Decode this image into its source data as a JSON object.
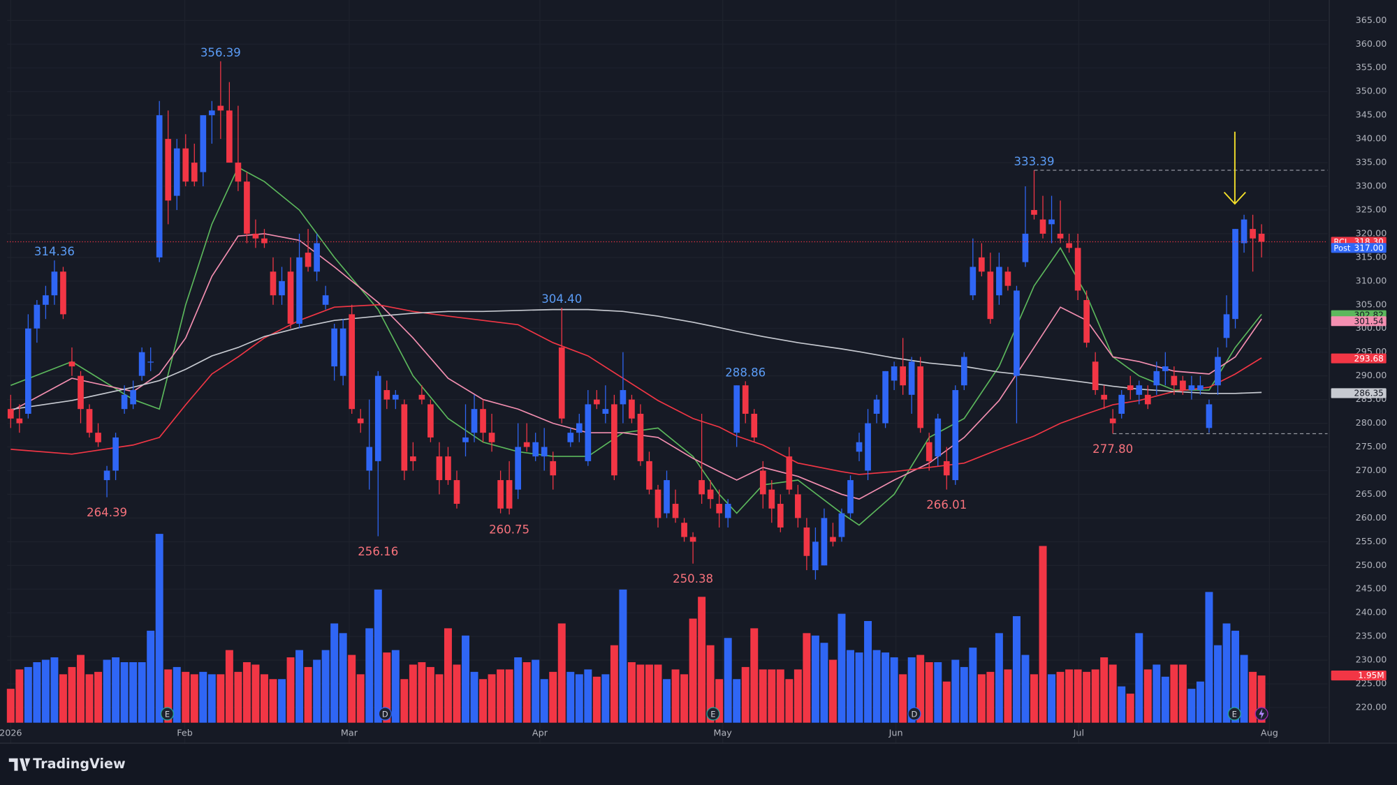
{
  "chart_data": {
    "type": "candlestick",
    "ylim": [
      220,
      365
    ],
    "yticks": [
      {
        "value": 220,
        "label": "220.00"
      },
      {
        "value": 225,
        "label": "225.00"
      },
      {
        "value": 230,
        "label": "230.00"
      },
      {
        "value": 235,
        "label": "235.00"
      },
      {
        "value": 240,
        "label": "240.00"
      },
      {
        "value": 245,
        "label": "245.00"
      },
      {
        "value": 250,
        "label": "250.00"
      },
      {
        "value": 255,
        "label": "255.00"
      },
      {
        "value": 260,
        "label": "260.00"
      },
      {
        "value": 265,
        "label": "265.00"
      },
      {
        "value": 270,
        "label": "270.00"
      },
      {
        "value": 275,
        "label": "275.00"
      },
      {
        "value": 280,
        "label": "280.00"
      },
      {
        "value": 285,
        "label": "285.00"
      },
      {
        "value": 290,
        "label": "290.00"
      },
      {
        "value": 295,
        "label": "295.00"
      },
      {
        "value": 300,
        "label": "300.00"
      },
      {
        "value": 305,
        "label": "305.00"
      },
      {
        "value": 310,
        "label": "310.00"
      },
      {
        "value": 315,
        "label": "315.00"
      },
      {
        "value": 320,
        "label": "320.00"
      },
      {
        "value": 325,
        "label": "325.00"
      },
      {
        "value": 330,
        "label": "330.00"
      },
      {
        "value": 335,
        "label": "335.00"
      },
      {
        "value": 340,
        "label": "340.00"
      },
      {
        "value": 345,
        "label": "345.00"
      },
      {
        "value": 350,
        "label": "350.00"
      },
      {
        "value": 355,
        "label": "355.00"
      },
      {
        "value": 360,
        "label": "360.00"
      },
      {
        "value": 365,
        "label": "365.00"
      }
    ],
    "xticks": [
      {
        "value": 0,
        "label": "2026"
      },
      {
        "value": 19.9,
        "label": "Feb"
      },
      {
        "value": 38.7,
        "label": "Mar"
      },
      {
        "value": 60.5,
        "label": "Apr"
      },
      {
        "value": 81.4,
        "label": "May"
      },
      {
        "value": 101.2,
        "label": "Jun"
      },
      {
        "value": 122.1,
        "label": "Jul"
      },
      {
        "value": 143.9,
        "label": "Aug"
      }
    ],
    "colors": {
      "up": "#2f66f5",
      "down": "#f23645"
    },
    "candles": {
      "open": [
        283,
        281,
        282,
        300,
        305,
        307,
        312,
        293,
        290,
        283,
        278,
        268,
        270,
        283,
        284,
        290,
        293,
        315,
        340,
        328,
        338,
        335,
        333,
        345,
        347,
        346,
        335,
        331,
        320,
        319,
        312,
        307,
        312,
        301,
        316,
        312,
        305,
        292,
        290,
        303,
        281,
        270,
        272,
        287,
        285,
        284,
        273,
        286,
        284,
        273,
        273,
        268,
        276,
        278,
        283,
        278,
        268,
        268,
        266,
        276,
        273,
        273,
        272,
        296,
        276,
        278,
        272,
        285,
        282,
        284,
        284,
        285,
        282,
        272,
        266,
        261,
        263,
        259,
        256,
        268,
        266,
        263,
        260,
        278,
        288,
        282,
        270,
        266,
        263,
        273,
        265,
        258,
        249,
        250,
        256,
        256,
        261,
        274,
        270,
        282,
        280,
        289,
        292,
        286,
        292,
        276,
        273,
        272,
        268,
        288,
        307,
        315,
        312,
        307,
        312,
        290,
        314,
        325,
        323,
        322,
        320,
        318,
        317,
        306,
        293,
        286,
        281,
        282,
        288,
        286,
        286,
        288,
        291,
        290,
        289,
        287,
        287,
        279,
        288,
        298,
        302,
        318,
        321,
        320
      ],
      "high": [
        286,
        284,
        303,
        306,
        309,
        314.36,
        313,
        296,
        291,
        284,
        280,
        271,
        278,
        288,
        289,
        296,
        296,
        348,
        346,
        340,
        341,
        339,
        345,
        348,
        356.39,
        352,
        347,
        333,
        323,
        321,
        315,
        313,
        315,
        320,
        321,
        320,
        309,
        301,
        302,
        305,
        283,
        285,
        291,
        289,
        287,
        285,
        276,
        288,
        285,
        276,
        275,
        270,
        284,
        286,
        285,
        282,
        270,
        272,
        280,
        280,
        278,
        279,
        274,
        304.4,
        279,
        282,
        287,
        287,
        288,
        286,
        295,
        286,
        284,
        274,
        267,
        270,
        266,
        260,
        257,
        282,
        268,
        266,
        264,
        288,
        288.86,
        283,
        272,
        268,
        265,
        275,
        267,
        260,
        258,
        262,
        259,
        262,
        269,
        278,
        283,
        286,
        291,
        293,
        298,
        294,
        294,
        278,
        282,
        275,
        288,
        295,
        319,
        318,
        316,
        316,
        313,
        309,
        330,
        333.39,
        328,
        328,
        327,
        320,
        320,
        308,
        295,
        288,
        283,
        287,
        290,
        289,
        288,
        293,
        295,
        292,
        290,
        290,
        290,
        285,
        296,
        307,
        321,
        324,
        324,
        322
      ],
      "low": [
        279,
        278,
        281,
        297,
        302,
        305,
        302,
        290,
        280,
        277,
        275,
        264.39,
        268,
        282,
        283,
        289,
        291,
        314,
        322,
        325,
        330,
        330,
        330,
        339,
        340,
        335,
        329,
        318,
        317,
        317,
        305,
        305,
        300,
        300,
        312,
        310,
        304,
        289,
        288,
        282,
        278,
        266,
        256.16,
        283,
        283,
        268,
        270,
        284,
        276,
        265,
        267,
        262,
        273,
        276,
        276,
        274,
        261,
        260.75,
        264,
        274,
        272,
        270,
        266,
        280,
        275,
        276,
        271,
        283,
        280,
        268,
        280,
        280,
        271,
        265,
        258,
        260,
        259,
        255,
        250.38,
        263,
        262,
        258,
        258,
        275,
        280,
        276,
        262,
        259,
        257,
        265,
        258,
        249,
        247,
        250,
        254,
        255,
        260,
        272,
        268,
        280,
        279,
        287,
        286,
        282,
        278,
        270,
        271,
        266.01,
        267,
        287,
        306,
        311,
        301,
        305,
        308,
        280,
        313,
        323,
        319,
        318,
        318,
        316,
        306,
        296,
        286,
        283,
        277.8,
        281,
        285,
        284,
        283,
        286,
        288,
        286,
        286,
        285,
        286,
        278,
        286,
        296,
        300,
        316,
        312,
        315
      ],
      "close": [
        281,
        280,
        300,
        305,
        307,
        312,
        303,
        292,
        283,
        278,
        276,
        270,
        277,
        286,
        287,
        295,
        293,
        345,
        327,
        338,
        331,
        331,
        345,
        346,
        346,
        335,
        331,
        320,
        319,
        318,
        307,
        310,
        301,
        315,
        313,
        318,
        307,
        300,
        300,
        283,
        280,
        275,
        290,
        285,
        286,
        270,
        272,
        285,
        277,
        268,
        268,
        263,
        277,
        283,
        278,
        276,
        262,
        262,
        275,
        275,
        276,
        275,
        269,
        281,
        278,
        280,
        284,
        284,
        283,
        269,
        287,
        281,
        272,
        266,
        260,
        268,
        260,
        256,
        255,
        265,
        264,
        261,
        263,
        288,
        282,
        277,
        265,
        262,
        258,
        266,
        260,
        252,
        255,
        260,
        255,
        261,
        268,
        276,
        280,
        285,
        291,
        292,
        288,
        293,
        279,
        272,
        281,
        269,
        287,
        294,
        313,
        312,
        302,
        313,
        309,
        308,
        320,
        324,
        320,
        323,
        319,
        317,
        308,
        297,
        287,
        285,
        280,
        286,
        287,
        288,
        284,
        291,
        292,
        288,
        287,
        288,
        288,
        284,
        294,
        303,
        321,
        323,
        319,
        318.3
      ]
    },
    "volume": [
      1.4,
      2.2,
      2.3,
      2.5,
      2.6,
      2.7,
      2.0,
      2.3,
      2.8,
      2.0,
      2.1,
      2.6,
      2.7,
      2.5,
      2.5,
      2.5,
      3.8,
      7.8,
      2.2,
      2.3,
      2.1,
      2.0,
      2.1,
      2.0,
      2.0,
      3.0,
      2.1,
      2.5,
      2.4,
      2.0,
      1.8,
      1.8,
      2.7,
      3.0,
      2.3,
      2.6,
      3.0,
      4.1,
      3.7,
      2.8,
      2.0,
      3.9,
      5.5,
      2.9,
      3.0,
      1.8,
      2.4,
      2.5,
      2.3,
      2.0,
      3.9,
      2.4,
      3.6,
      2.1,
      1.8,
      2.0,
      2.2,
      2.2,
      2.7,
      2.5,
      2.6,
      1.8,
      2.1,
      4.1,
      2.1,
      2.0,
      2.2,
      1.9,
      2.0,
      3.2,
      5.5,
      2.5,
      2.4,
      2.4,
      2.4,
      1.8,
      2.2,
      2.0,
      4.3,
      5.2,
      3.2,
      1.8,
      3.5,
      1.8,
      2.3,
      3.9,
      2.2,
      2.2,
      2.2,
      1.8,
      2.2,
      3.7,
      3.6,
      3.3,
      2.6,
      4.5,
      3.0,
      2.9,
      4.2,
      3.0,
      2.9,
      2.7,
      2.0,
      2.7,
      2.8,
      2.5,
      2.5,
      1.7,
      2.6,
      2.3,
      3.1,
      2.0,
      2.1,
      3.7,
      2.2,
      4.4,
      2.8,
      2.0,
      7.3,
      2.0,
      2.1,
      2.2,
      2.2,
      2.1,
      2.2,
      2.7,
      2.4,
      1.5,
      1.2,
      3.7,
      2.2,
      2.4,
      1.9,
      2.4,
      2.4,
      1.4,
      1.7,
      5.4,
      3.2,
      4.1,
      3.8,
      2.8,
      2.1,
      1.95
    ],
    "volume_badge": {
      "value": 1.95,
      "label": "1.95M"
    },
    "moving_averages": {
      "x": [
        0,
        7,
        14,
        17,
        20,
        23,
        26,
        29,
        33,
        37,
        42,
        46,
        50,
        54,
        58,
        62,
        66,
        70,
        74,
        78,
        81,
        83,
        86,
        90,
        95,
        97,
        101,
        105,
        109,
        113,
        117,
        120,
        123,
        126,
        129,
        133,
        137,
        140,
        143
      ],
      "series": [
        {
          "color": "#5cb85c",
          "values": [
            288,
            293,
            285,
            283,
            305,
            322,
            334,
            331,
            325,
            315,
            304,
            290,
            281,
            276,
            274,
            273,
            273,
            278,
            279,
            273,
            265,
            261,
            267,
            268,
            261,
            258.5,
            265,
            277,
            281,
            292,
            309,
            317,
            307,
            294,
            290,
            287,
            287,
            296,
            303
          ]
        },
        {
          "color": "#f48fb1",
          "values": [
            282.5,
            289.5,
            286.7,
            290.4,
            298,
            311,
            319.5,
            320,
            318.6,
            313,
            305.5,
            298,
            289.5,
            285,
            283,
            280,
            278,
            278,
            277,
            272.6,
            269.8,
            268,
            270.7,
            268.8,
            265,
            264,
            268,
            271.6,
            277,
            284.8,
            296,
            304.5,
            301.7,
            294,
            293,
            291,
            290.4,
            294,
            302
          ]
        },
        {
          "color": "#f23645",
          "values": [
            274.5,
            273.5,
            275.4,
            277,
            283.9,
            290.4,
            294,
            298,
            301.7,
            304.5,
            305,
            303.6,
            302.6,
            301.7,
            300.8,
            297,
            294.2,
            289.5,
            284.8,
            281,
            279.2,
            277.3,
            275.4,
            271.6,
            269.8,
            269.2,
            269.8,
            270.7,
            271.6,
            274.5,
            277.3,
            280,
            282,
            283.9,
            284.8,
            286.7,
            287.6,
            290.4,
            293.8
          ]
        },
        {
          "color": "#c7cad1",
          "values": [
            282.9,
            284.8,
            287.6,
            289,
            291.4,
            294.2,
            296,
            298.3,
            300.2,
            301.7,
            302.6,
            303.2,
            303.6,
            303.6,
            303.8,
            304,
            304,
            303.6,
            302.6,
            301.3,
            300.2,
            299.4,
            298.3,
            297,
            295.7,
            295.1,
            293.8,
            292.7,
            292,
            290.8,
            290,
            289.3,
            288.6,
            287.8,
            287.2,
            286.7,
            286.3,
            286.3,
            286.5
          ]
        }
      ]
    },
    "annotations": [
      {
        "value": 314.36,
        "label": "314.36"
      },
      {
        "value": 264.39,
        "label": "264.39"
      },
      {
        "value": 356.39,
        "label": "356.39"
      },
      {
        "value": 256.16,
        "label": "256.16"
      },
      {
        "value": 304.4,
        "label": "304.40"
      },
      {
        "value": 260.75,
        "label": "260.75"
      },
      {
        "value": 288.86,
        "label": "288.86"
      },
      {
        "value": 250.38,
        "label": "250.38"
      },
      {
        "value": 266.01,
        "label": "266.01"
      },
      {
        "value": 333.39,
        "label": "333.39",
        "level": true
      },
      {
        "value": 277.8,
        "label": "277.80",
        "level": true
      }
    ],
    "price_badges": [
      {
        "value": 318.3,
        "label": "318.30",
        "tag": "RCL",
        "color": "#f23645",
        "text_color": "#ffffff",
        "line": true
      },
      {
        "value": 317,
        "label": "317.00",
        "tag": "Post",
        "color": "#2f66f5",
        "text_color": "#ffffff"
      },
      {
        "value": 302.82,
        "label": "302.82",
        "color": "#5cb85c",
        "text_color": "#131722"
      },
      {
        "value": 301.54,
        "label": "301.54",
        "color": "#f48fb1",
        "text_color": "#131722"
      },
      {
        "value": 293.68,
        "label": "293.68",
        "color": "#f23645",
        "text_color": "#ffffff"
      },
      {
        "value": 286.35,
        "label": "286.35",
        "color": "#c7cad1",
        "text_color": "#131722"
      }
    ],
    "events": [
      {
        "label": "E",
        "x": 17.9
      },
      {
        "label": "D",
        "x": 42.8
      },
      {
        "label": "E",
        "x": 80.3
      },
      {
        "label": "D",
        "x": 103.3
      },
      {
        "label": "E",
        "x": 139.9
      }
    ]
  },
  "brand": "TradingView"
}
